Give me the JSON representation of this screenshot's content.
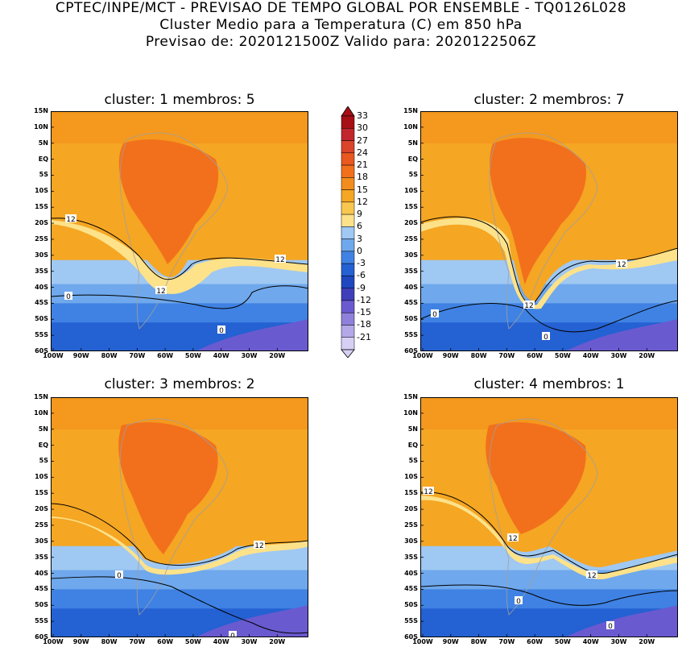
{
  "header": {
    "line1": "CPTEC/INPE/MCT - PREVISAO DE TEMPO GLOBAL POR ENSEMBLE - TQ0126L028",
    "line2": "Cluster Medio para a Temperatura (C) em 850 hPa",
    "line3": "Previsao de: 2020121500Z   Valido para: 2020122506Z"
  },
  "panels": [
    {
      "title": "cluster: 1   membros: 5"
    },
    {
      "title": "cluster: 2   membros: 7"
    },
    {
      "title": "cluster: 3   membros: 2"
    },
    {
      "title": "cluster: 4   membros: 1"
    }
  ],
  "lat_labels": [
    "15N",
    "10N",
    "5N",
    "EQ",
    "5S",
    "10S",
    "15S",
    "20S",
    "25S",
    "30S",
    "35S",
    "40S",
    "45S",
    "50S",
    "55S",
    "60S"
  ],
  "lon_labels": [
    "100W",
    "90W",
    "80W",
    "70W",
    "60W",
    "50W",
    "40W",
    "30W",
    "20W"
  ],
  "colorbar": {
    "labels": [
      "33",
      "30",
      "27",
      "24",
      "21",
      "18",
      "15",
      "12",
      "9",
      "6",
      "3",
      "0",
      "-3",
      "-6",
      "-9",
      "-12",
      "-15",
      "-18",
      "-21"
    ],
    "colors": [
      "#a50f15",
      "#c0262b",
      "#d9442b",
      "#e8581f",
      "#f2701c",
      "#f28c1c",
      "#f5a623",
      "#f9c74f",
      "#fde28a",
      "#9fc8f2",
      "#6fa8ec",
      "#3f82e3",
      "#2461d2",
      "#1f48c0",
      "#3f3fba",
      "#6a5ad0",
      "#8f80dc",
      "#b4a8e8",
      "#d8d0f4"
    ],
    "contour_labels": [
      "12",
      "0"
    ]
  }
}
